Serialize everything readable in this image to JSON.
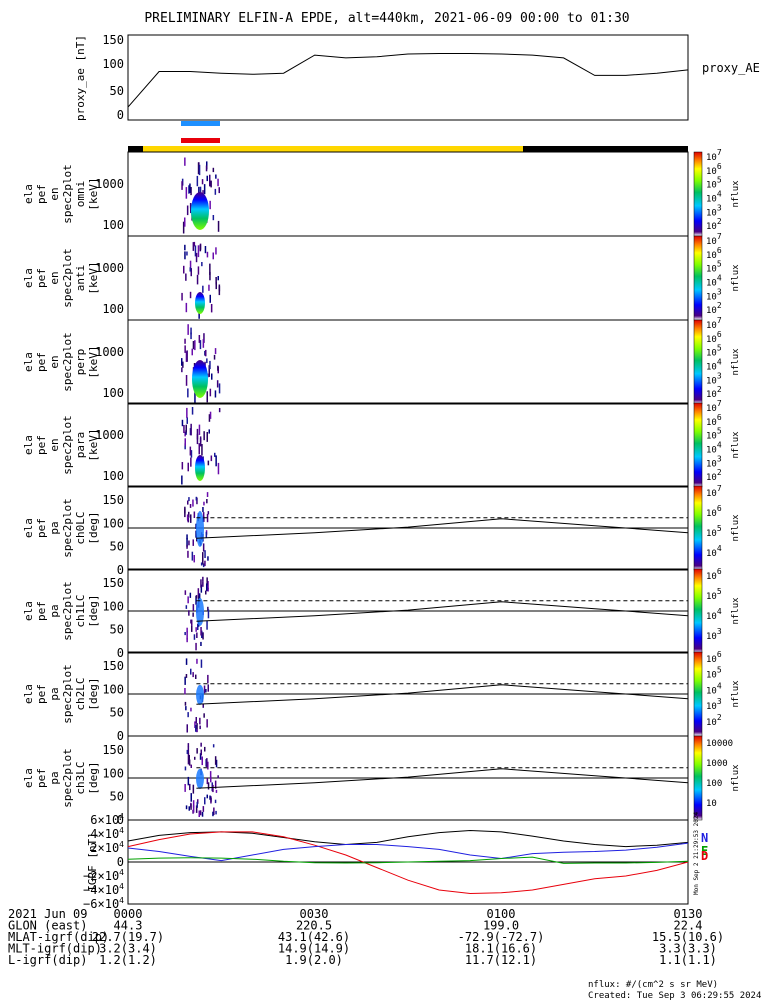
{
  "title": "PRELIMINARY ELFIN-A EPDE, alt=440km, 2021-06-09 00:00 to 01:30",
  "proxy_ae": {
    "ylabel": "proxy_ae [nT]",
    "legend": "proxy_AE",
    "yticks": [
      "150",
      "100",
      "50",
      "0"
    ]
  },
  "spectra": [
    {
      "ylabel": [
        "ela",
        "pef",
        "en",
        "spec2plot",
        "omni",
        "[keV]"
      ],
      "yticks": [
        "1000",
        "100"
      ],
      "cbar_ticks": [
        "10^7",
        "10^6",
        "10^5",
        "10^4",
        "10^3",
        "10^2"
      ],
      "cbar_label": "nflux"
    },
    {
      "ylabel": [
        "ela",
        "pef",
        "en",
        "spec2plot",
        "anti",
        "[keV]"
      ],
      "yticks": [
        "1000",
        "100"
      ],
      "cbar_ticks": [
        "10^7",
        "10^6",
        "10^5",
        "10^4",
        "10^3",
        "10^2"
      ],
      "cbar_label": "nflux"
    },
    {
      "ylabel": [
        "ela",
        "pef",
        "en",
        "spec2plot",
        "perp",
        "[keV]"
      ],
      "yticks": [
        "1000",
        "100"
      ],
      "cbar_ticks": [
        "10^7",
        "10^6",
        "10^5",
        "10^4",
        "10^3",
        "10^2"
      ],
      "cbar_label": "nflux"
    },
    {
      "ylabel": [
        "ela",
        "pef",
        "en",
        "spec2plot",
        "para",
        "[keV]"
      ],
      "yticks": [
        "1000",
        "100"
      ],
      "cbar_ticks": [
        "10^7",
        "10^6",
        "10^5",
        "10^4",
        "10^3",
        "10^2"
      ],
      "cbar_label": "nflux"
    }
  ],
  "pitch": [
    {
      "ylabel": [
        "ela",
        "pef",
        "pa",
        "spec2plot",
        "ch0LC",
        "[deg]"
      ],
      "yticks": [
        "150",
        "100",
        "50",
        "0"
      ],
      "cbar_ticks": [
        "10^7",
        "10^6",
        "10^5",
        "10^4"
      ],
      "cbar_label": "nflux"
    },
    {
      "ylabel": [
        "ela",
        "pef",
        "pa",
        "spec2plot",
        "ch1LC",
        "[deg]"
      ],
      "yticks": [
        "150",
        "100",
        "50",
        "0"
      ],
      "cbar_ticks": [
        "10^6",
        "10^5",
        "10^4",
        "10^3"
      ],
      "cbar_label": "nflux"
    },
    {
      "ylabel": [
        "ela",
        "pef",
        "pa",
        "spec2plot",
        "ch2LC",
        "[deg]"
      ],
      "yticks": [
        "150",
        "100",
        "50",
        "0"
      ],
      "cbar_ticks": [
        "10^6",
        "10^5",
        "10^4",
        "10^3",
        "10^2"
      ],
      "cbar_label": "nflux"
    },
    {
      "ylabel": [
        "ela",
        "pef",
        "pa",
        "spec2plot",
        "ch3LC",
        "[deg]"
      ],
      "yticks": [
        "150",
        "100",
        "50",
        "0"
      ],
      "cbar_ticks": [
        "10000",
        "1000",
        "100",
        "10"
      ],
      "cbar_label": "nflux"
    }
  ],
  "igrf": {
    "ylabel": "IGRF [nT]",
    "yticks": [
      "6×10^4",
      "4×10^4",
      "2×10^4",
      "0",
      "−2×10^4",
      "−4×10^4",
      "−6×10^4"
    ],
    "legend": [
      "N",
      "E",
      "D"
    ],
    "side_note": "Mon Sep 2 21:29:53 2024"
  },
  "bottom": {
    "rows": [
      {
        "label": "2021 Jun 09",
        "values": [
          "0000",
          "0030",
          "0100",
          "0130"
        ]
      },
      {
        "label": "GLON (east)",
        "values": [
          "44.3",
          "220.5",
          "199.0",
          "22.4"
        ]
      },
      {
        "label": "MLAT-igrf(dip)",
        "values": [
          "22.7(19.7)",
          "43.1(42.6)",
          "-72.9(-72.7)",
          "15.5(10.6)"
        ]
      },
      {
        "label": "MLT-igrf(dip)",
        "values": [
          "3.2(3.4)",
          "14.9(14.9)",
          "18.1(16.6)",
          "3.3(3.3)"
        ]
      },
      {
        "label": "L-igrf(dip)",
        "values": [
          "1.2(1.2)",
          "1.9(2.0)",
          "11.7(12.1)",
          "1.1(1.1)"
        ]
      }
    ],
    "footer1": "nflux: #/(cm^2 s sr MeV)",
    "footer2": "Created: Tue Sep  3 06:29:55 2024"
  },
  "colors": {
    "science_bar_blue": "#1e90ff",
    "science_bar_red": "#e8000b",
    "sunlit_bar": "#ffd700",
    "igrf_N": "#000000",
    "igrf_E": "#e8000b",
    "igrf_D": "#2020e0",
    "igrf_green": "#00a000"
  },
  "chart_data": [
    {
      "type": "line",
      "title": "PRELIMINARY ELFIN-A EPDE, alt=440km, 2021-06-09 00:00 to 01:30",
      "ylabel": "proxy_ae [nT]",
      "ylim": [
        0,
        150
      ],
      "x": [
        "00:00",
        "00:05",
        "00:10",
        "00:15",
        "00:20",
        "00:25",
        "00:30",
        "00:35",
        "00:40",
        "00:45",
        "00:50",
        "00:55",
        "01:00",
        "01:05",
        "01:10",
        "01:15",
        "01:20",
        "01:25",
        "01:30"
      ],
      "series": [
        {
          "name": "proxy_AE",
          "values": [
            20,
            85,
            85,
            82,
            80,
            82,
            115,
            110,
            112,
            117,
            118,
            118,
            117,
            115,
            110,
            78,
            78,
            82,
            88
          ]
        }
      ]
    },
    {
      "type": "line",
      "ylabel": "IGRF [nT]",
      "ylim": [
        -60000,
        60000
      ],
      "x": [
        "00:00",
        "00:05",
        "00:10",
        "00:15",
        "00:20",
        "00:25",
        "00:30",
        "00:35",
        "00:40",
        "00:45",
        "00:50",
        "00:55",
        "01:00",
        "01:05",
        "01:10",
        "01:15",
        "01:20",
        "01:25",
        "01:30"
      ],
      "series": [
        {
          "name": "N",
          "values": [
            30000,
            38000,
            42000,
            43000,
            41000,
            35000,
            29000,
            25000,
            28000,
            36000,
            42000,
            45000,
            43000,
            37000,
            30000,
            25000,
            22000,
            24000,
            28000
          ]
        },
        {
          "name": "E",
          "values": [
            22000,
            32000,
            40000,
            43000,
            43000,
            36000,
            24000,
            10000,
            -8000,
            -26000,
            -40000,
            -45000,
            -44000,
            -40000,
            -32000,
            -24000,
            -20000,
            -12000,
            0
          ]
        },
        {
          "name": "D",
          "values": [
            20000,
            15000,
            8000,
            2000,
            10000,
            18000,
            22000,
            25000,
            25000,
            22000,
            18000,
            10000,
            5000,
            12000,
            14000,
            15000,
            17000,
            21000,
            27000
          ]
        },
        {
          "name": "",
          "values": [
            4000,
            5500,
            6000,
            5500,
            4000,
            1000,
            -1000,
            -1500,
            -1000,
            0,
            1000,
            2000,
            5000,
            7000,
            -2000,
            -1500,
            -1500,
            -500,
            1000
          ]
        }
      ]
    },
    {
      "type": "line",
      "ylabel": "[deg]",
      "ylim": [
        0,
        180
      ],
      "x": [
        "00:11",
        "00:30",
        "00:45",
        "01:00",
        "01:15",
        "01:30"
      ],
      "series": [
        {
          "name": "",
          "values": [
            68,
            80,
            92,
            110,
            95,
            80
          ]
        },
        {
          "name": "",
          "values": [
            112,
            112,
            112,
            112,
            112,
            112
          ]
        }
      ]
    }
  ]
}
